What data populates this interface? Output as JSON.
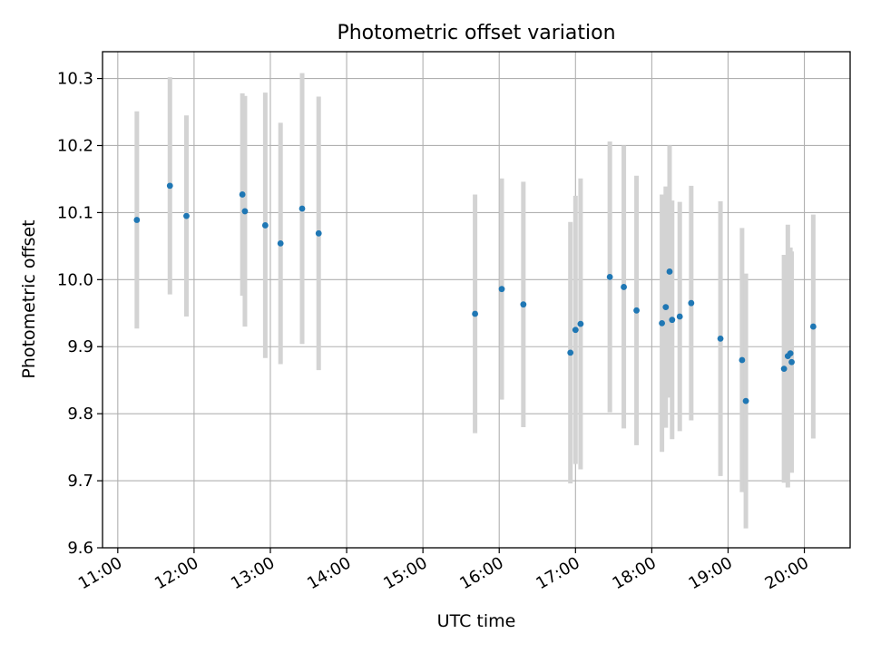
{
  "chart_data": {
    "type": "scatter",
    "title": "Photometric offset variation",
    "xlabel": "UTC time",
    "ylabel": "Photometric offset",
    "xlim": [
      "10:48",
      "20:36"
    ],
    "ylim": [
      9.6,
      10.34
    ],
    "x_ticks": [
      "11:00",
      "12:00",
      "13:00",
      "14:00",
      "15:00",
      "16:00",
      "17:00",
      "18:00",
      "19:00",
      "20:00"
    ],
    "y_ticks": [
      "9.6",
      "9.7",
      "9.8",
      "9.9",
      "10.0",
      "10.1",
      "10.2",
      "10.3"
    ],
    "grid": true,
    "point_color": "#1f77b4",
    "errorbar_color": "#d3d3d3",
    "points": [
      {
        "x": "11:15",
        "y": 10.089,
        "yerr": 0.162
      },
      {
        "x": "11:41",
        "y": 10.14,
        "yerr": 0.162
      },
      {
        "x": "11:54",
        "y": 10.095,
        "yerr": 0.15
      },
      {
        "x": "12:38",
        "y": 10.127,
        "yerr": 0.151
      },
      {
        "x": "12:40",
        "y": 10.102,
        "yerr": 0.172
      },
      {
        "x": "12:56",
        "y": 10.081,
        "yerr": 0.198
      },
      {
        "x": "13:08",
        "y": 10.054,
        "yerr": 0.18
      },
      {
        "x": "13:25",
        "y": 10.106,
        "yerr": 0.202
      },
      {
        "x": "13:38",
        "y": 10.069,
        "yerr": 0.204
      },
      {
        "x": "15:41",
        "y": 9.949,
        "yerr": 0.178
      },
      {
        "x": "16:02",
        "y": 9.986,
        "yerr": 0.165
      },
      {
        "x": "16:19",
        "y": 9.963,
        "yerr": 0.183
      },
      {
        "x": "16:56",
        "y": 9.891,
        "yerr": 0.195
      },
      {
        "x": "17:00",
        "y": 9.925,
        "yerr": 0.2
      },
      {
        "x": "17:04",
        "y": 9.934,
        "yerr": 0.217
      },
      {
        "x": "17:27",
        "y": 10.004,
        "yerr": 0.202
      },
      {
        "x": "17:38",
        "y": 9.989,
        "yerr": 0.211
      },
      {
        "x": "17:48",
        "y": 9.954,
        "yerr": 0.201
      },
      {
        "x": "18:08",
        "y": 9.935,
        "yerr": 0.192
      },
      {
        "x": "18:11",
        "y": 9.959,
        "yerr": 0.18
      },
      {
        "x": "18:14",
        "y": 10.012,
        "yerr": 0.188
      },
      {
        "x": "18:16",
        "y": 9.94,
        "yerr": 0.178
      },
      {
        "x": "18:22",
        "y": 9.945,
        "yerr": 0.171
      },
      {
        "x": "18:31",
        "y": 9.965,
        "yerr": 0.175
      },
      {
        "x": "18:54",
        "y": 9.912,
        "yerr": 0.205
      },
      {
        "x": "19:11",
        "y": 9.88,
        "yerr": 0.197
      },
      {
        "x": "19:14",
        "y": 9.819,
        "yerr": 0.19
      },
      {
        "x": "19:44",
        "y": 9.867,
        "yerr": 0.17
      },
      {
        "x": "19:47",
        "y": 9.886,
        "yerr": 0.196
      },
      {
        "x": "19:49",
        "y": 9.89,
        "yerr": 0.158
      },
      {
        "x": "19:50",
        "y": 9.877,
        "yerr": 0.165
      },
      {
        "x": "20:07",
        "y": 9.93,
        "yerr": 0.167
      }
    ]
  }
}
